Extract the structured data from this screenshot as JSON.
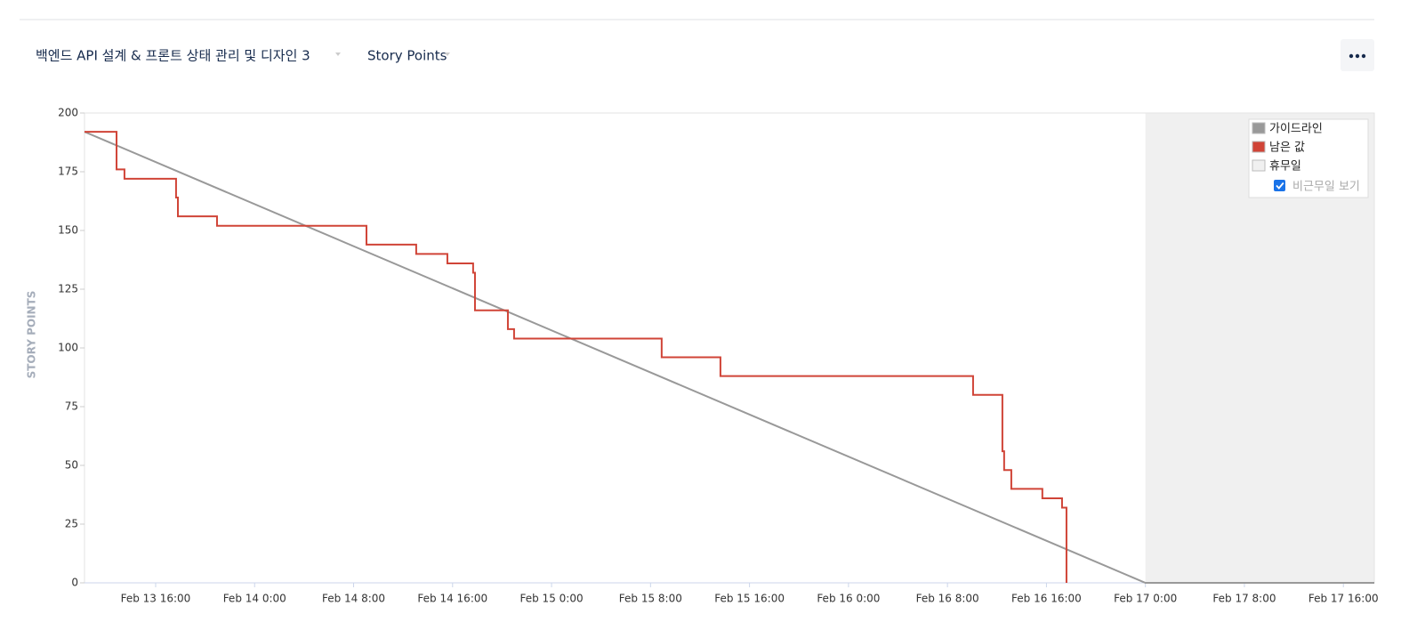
{
  "header": {
    "sprint_select": "백엔드 API 설계 & 프론트 상태 관리 및 디자인 3",
    "metric_select": "Story Points"
  },
  "chart_data": {
    "type": "line",
    "step_drawn_as_vertices": true,
    "ylabel": "STORY POINTS",
    "xlim": [
      10.25,
      114.5
    ],
    "ylim": [
      0,
      200
    ],
    "yticks": [
      0,
      25,
      50,
      75,
      100,
      125,
      150,
      175,
      200
    ],
    "xticks": [
      {
        "value": 16,
        "label": "Feb 13 16:00"
      },
      {
        "value": 24,
        "label": "Feb 14 0:00"
      },
      {
        "value": 32,
        "label": "Feb 14 8:00"
      },
      {
        "value": 40,
        "label": "Feb 14 16:00"
      },
      {
        "value": 48,
        "label": "Feb 15 0:00"
      },
      {
        "value": 56,
        "label": "Feb 15 8:00"
      },
      {
        "value": 64,
        "label": "Feb 15 16:00"
      },
      {
        "value": 72,
        "label": "Feb 16 0:00"
      },
      {
        "value": 80,
        "label": "Feb 16 8:00"
      },
      {
        "value": 88,
        "label": "Feb 16 16:00"
      },
      {
        "value": 96,
        "label": "Feb 17 0:00"
      },
      {
        "value": 104,
        "label": "Feb 17 8:00"
      },
      {
        "value": 112,
        "label": "Feb 17 16:00"
      }
    ],
    "nonworking": {
      "name": "휴무일",
      "color": "#f0f0f0",
      "x": [
        96,
        114.5
      ]
    },
    "toggle_label": "비근무일 보기",
    "series": [
      {
        "name": "가이드라인",
        "color": "#999999",
        "x": [
          10.25,
          96,
          114.5
        ],
        "values": [
          192,
          0,
          0
        ]
      },
      {
        "name": "남은 값",
        "color": "#d04437",
        "x": [
          10.25,
          12.84,
          12.84,
          13.48,
          13.48,
          17.65,
          17.65,
          17.8,
          17.8,
          20.96,
          20.96,
          33.04,
          33.04,
          37.06,
          37.06,
          39.58,
          39.58,
          41.66,
          41.66,
          41.81,
          41.81,
          44.47,
          44.47,
          44.97,
          44.97,
          56.9,
          56.9,
          61.65,
          61.65,
          82.07,
          82.07,
          84.44,
          84.44,
          84.58,
          84.58,
          85.16,
          85.16,
          87.67,
          87.67,
          89.26,
          89.26,
          89.62,
          89.62
        ],
        "values": [
          192,
          192,
          176,
          176,
          172,
          172,
          164,
          164,
          156,
          156,
          152,
          152,
          144,
          144,
          140,
          140,
          136,
          136,
          132,
          132,
          116,
          116,
          108,
          108,
          104,
          104,
          96,
          96,
          88,
          88,
          80,
          80,
          56,
          56,
          48,
          48,
          40,
          40,
          36,
          36,
          32,
          32,
          0
        ]
      }
    ]
  }
}
